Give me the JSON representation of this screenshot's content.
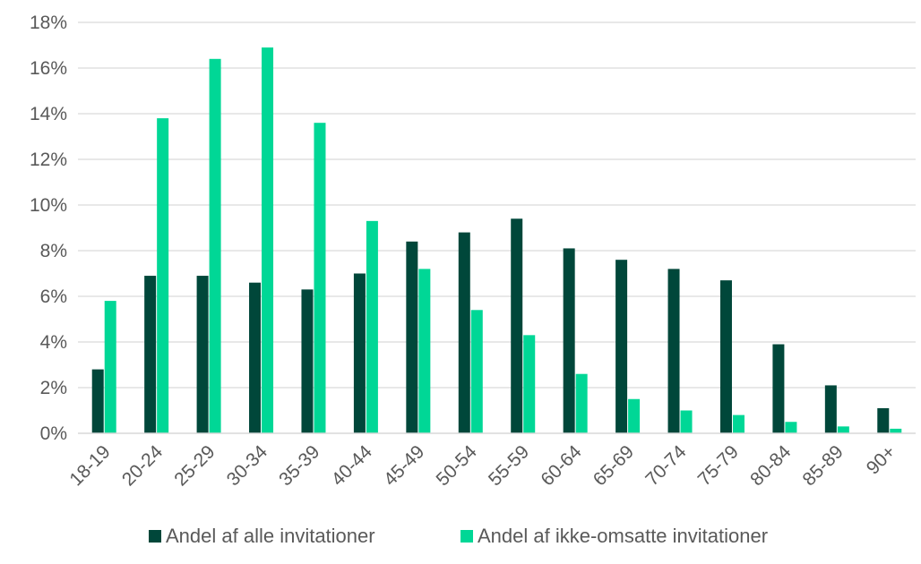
{
  "chart_data": {
    "type": "bar",
    "title": "",
    "xlabel": "",
    "ylabel": "",
    "ylim": [
      0,
      18
    ],
    "y_tick_step": 2,
    "y_tick_suffix": "%",
    "grid": "horizontal",
    "legend_position": "bottom",
    "categories": [
      "18-19",
      "20-24",
      "25-29",
      "30-34",
      "35-39",
      "40-44",
      "45-49",
      "50-54",
      "55-59",
      "60-64",
      "65-69",
      "70-74",
      "75-79",
      "80-84",
      "85-89",
      "90+"
    ],
    "series": [
      {
        "name": "Andel af alle invitationer",
        "color": "#00473A",
        "values": [
          2.8,
          6.9,
          6.9,
          6.6,
          6.3,
          7.0,
          8.4,
          8.8,
          9.4,
          8.1,
          7.6,
          7.2,
          6.7,
          3.9,
          2.1,
          1.1
        ]
      },
      {
        "name": "Andel af ikke-omsatte invitationer",
        "color": "#00D796",
        "values": [
          5.8,
          13.8,
          16.4,
          16.9,
          13.6,
          9.3,
          7.2,
          5.4,
          4.3,
          2.6,
          1.5,
          1.0,
          0.8,
          0.5,
          0.3,
          0.2
        ]
      }
    ]
  }
}
